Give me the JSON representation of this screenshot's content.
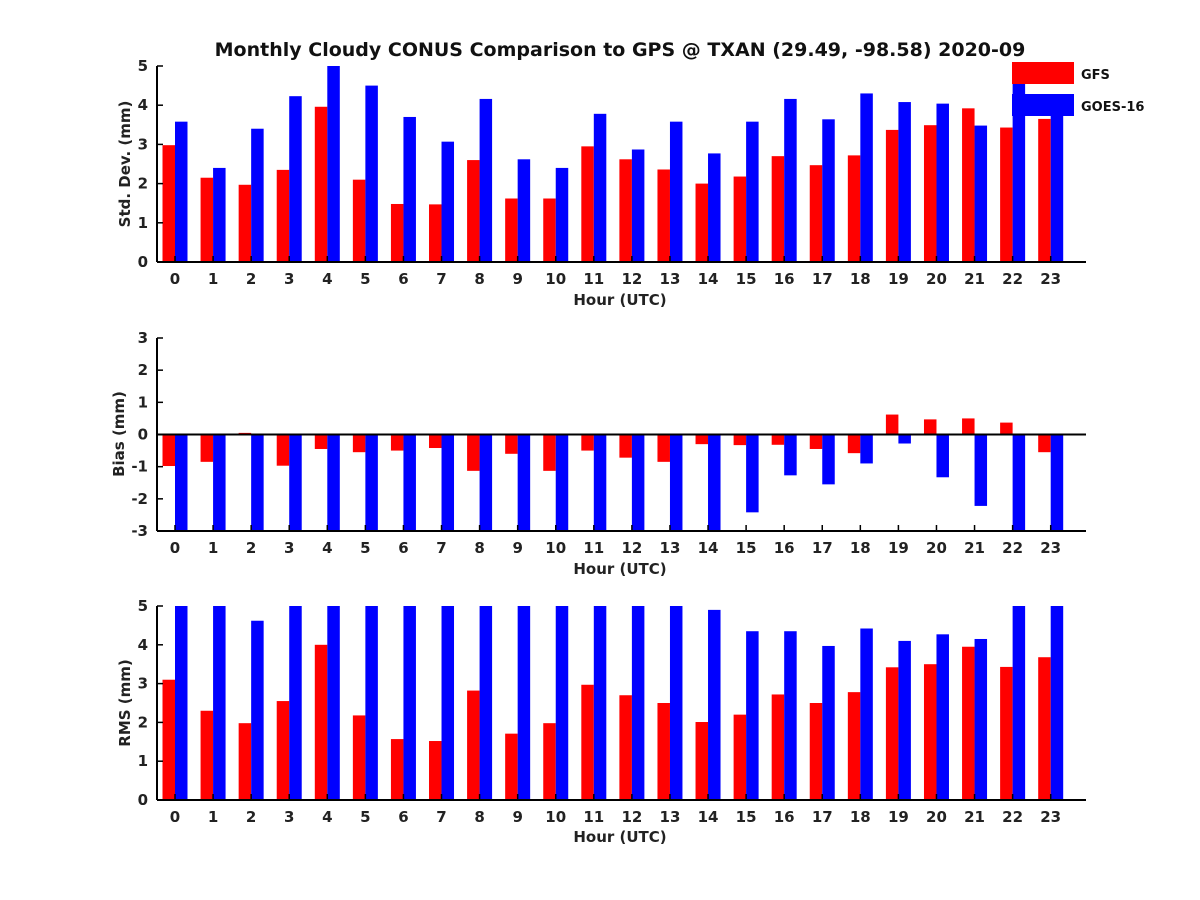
{
  "colors": {
    "GFS": "#ff0000",
    "GOES-16": "#0000ff",
    "axis": "#000000"
  },
  "chart_data": [
    {
      "type": "bar",
      "title": "Monthly Cloudy CONUS Comparison to GPS @ TXAN (29.49, -98.58) 2020-09",
      "xlabel": "Hour (UTC)",
      "ylabel": "Std. Dev. (mm)",
      "ylim": [
        0,
        5
      ],
      "yticks": [
        "0",
        "1",
        "2",
        "3",
        "4",
        "5"
      ],
      "categories": [
        "0",
        "1",
        "2",
        "3",
        "4",
        "5",
        "6",
        "7",
        "8",
        "9",
        "10",
        "11",
        "12",
        "13",
        "14",
        "15",
        "16",
        "17",
        "18",
        "19",
        "20",
        "21",
        "22",
        "23"
      ],
      "legend": [
        "GFS",
        "GOES-16"
      ],
      "legend_position": "top-right",
      "series": [
        {
          "name": "GFS",
          "values": [
            2.98,
            2.15,
            1.97,
            2.35,
            3.96,
            2.1,
            1.48,
            1.47,
            2.6,
            1.62,
            1.62,
            2.95,
            2.62,
            2.36,
            2.0,
            2.18,
            2.7,
            2.47,
            2.72,
            3.37,
            3.49,
            3.92,
            3.43,
            3.65
          ]
        },
        {
          "name": "GOES-16",
          "values": [
            3.58,
            2.4,
            3.4,
            4.23,
            5.0,
            4.5,
            3.7,
            3.07,
            4.16,
            2.62,
            2.4,
            3.78,
            2.87,
            3.58,
            2.77,
            3.58,
            4.16,
            3.64,
            4.3,
            4.08,
            4.04,
            3.48,
            5.0,
            4.0
          ]
        }
      ]
    },
    {
      "type": "bar",
      "xlabel": "Hour (UTC)",
      "ylabel": "Bias (mm)",
      "ylim": [
        -3,
        3
      ],
      "yticks": [
        "-3",
        "-2",
        "-1",
        "0",
        "1",
        "2",
        "3"
      ],
      "categories": [
        "0",
        "1",
        "2",
        "3",
        "4",
        "5",
        "6",
        "7",
        "8",
        "9",
        "10",
        "11",
        "12",
        "13",
        "14",
        "15",
        "16",
        "17",
        "18",
        "19",
        "20",
        "21",
        "22",
        "23"
      ],
      "series": [
        {
          "name": "GFS",
          "values": [
            -0.98,
            -0.85,
            0.05,
            -0.97,
            -0.45,
            -0.55,
            -0.5,
            -0.42,
            -1.13,
            -0.6,
            -1.13,
            -0.5,
            -0.72,
            -0.85,
            -0.3,
            -0.33,
            -0.32,
            -0.45,
            -0.58,
            0.62,
            0.47,
            0.5,
            0.37,
            -0.55
          ]
        },
        {
          "name": "GOES-16",
          "values": [
            -3.0,
            -3.0,
            -3.0,
            -3.0,
            -3.0,
            -3.0,
            -3.0,
            -3.0,
            -3.0,
            -3.0,
            -3.0,
            -3.0,
            -3.0,
            -3.0,
            -3.0,
            -2.42,
            -1.27,
            -1.55,
            -0.9,
            -0.28,
            -1.33,
            -2.22,
            -3.0,
            -3.0
          ]
        }
      ]
    },
    {
      "type": "bar",
      "xlabel": "Hour (UTC)",
      "ylabel": "RMS (mm)",
      "ylim": [
        0,
        5
      ],
      "yticks": [
        "0",
        "1",
        "2",
        "3",
        "4",
        "5"
      ],
      "categories": [
        "0",
        "1",
        "2",
        "3",
        "4",
        "5",
        "6",
        "7",
        "8",
        "9",
        "10",
        "11",
        "12",
        "13",
        "14",
        "15",
        "16",
        "17",
        "18",
        "19",
        "20",
        "21",
        "22",
        "23"
      ],
      "series": [
        {
          "name": "GFS",
          "values": [
            3.1,
            2.3,
            1.98,
            2.55,
            4.0,
            2.18,
            1.57,
            1.52,
            2.82,
            1.71,
            1.98,
            2.97,
            2.7,
            2.5,
            2.01,
            2.2,
            2.72,
            2.5,
            2.78,
            3.42,
            3.5,
            3.95,
            3.43,
            3.68
          ]
        },
        {
          "name": "GOES-16",
          "values": [
            5.0,
            5.0,
            4.62,
            5.0,
            5.0,
            5.0,
            5.0,
            5.0,
            5.0,
            5.0,
            5.0,
            5.0,
            5.0,
            5.0,
            4.9,
            4.35,
            4.35,
            3.97,
            4.42,
            4.1,
            4.27,
            4.15,
            5.0,
            5.0
          ]
        }
      ]
    }
  ]
}
